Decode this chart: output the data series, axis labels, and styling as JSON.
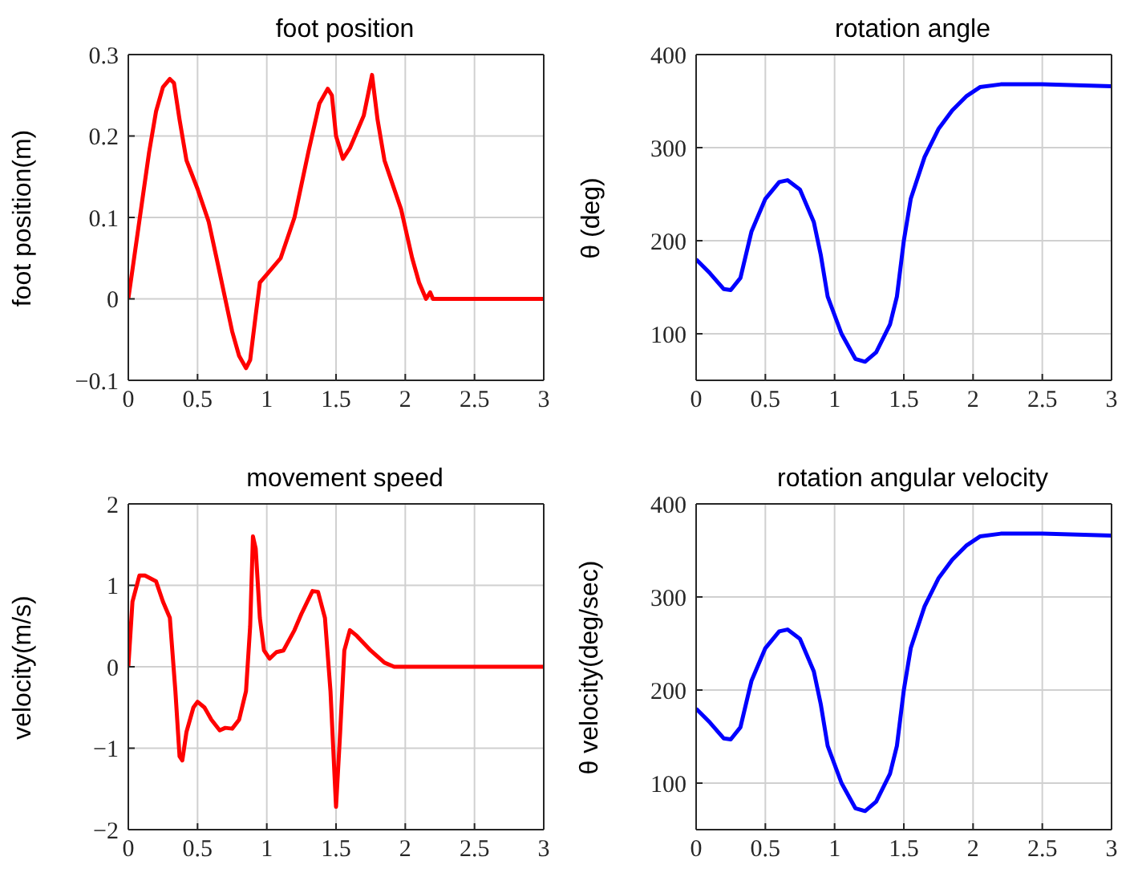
{
  "chart_data": [
    {
      "type": "line",
      "title": "foot position",
      "ylabel": "foot position(m)",
      "xlim": [
        0,
        3
      ],
      "xticks": [
        0,
        0.5,
        1,
        1.5,
        2,
        2.5,
        3
      ],
      "ylim": [
        -0.1,
        0.3
      ],
      "yticks": [
        {
          "value": -0.1,
          "label": "−0.1"
        },
        0,
        0.1,
        0.2,
        0.3
      ],
      "grid": true,
      "x": [
        0,
        0.05,
        0.1,
        0.15,
        0.2,
        0.25,
        0.3,
        0.33,
        0.37,
        0.42,
        0.5,
        0.58,
        0.65,
        0.7,
        0.75,
        0.8,
        0.85,
        0.88,
        0.92,
        0.95,
        1.0,
        1.1,
        1.2,
        1.3,
        1.38,
        1.44,
        1.47,
        1.5,
        1.55,
        1.6,
        1.65,
        1.7,
        1.76,
        1.8,
        1.85,
        1.9,
        1.97,
        2.05,
        2.1,
        2.15,
        2.18,
        2.2,
        3
      ],
      "series": [
        {
          "color": "#ff0000",
          "values": [
            0,
            0.06,
            0.12,
            0.18,
            0.23,
            0.26,
            0.27,
            0.265,
            0.22,
            0.17,
            0.135,
            0.095,
            0.04,
            0.0,
            -0.04,
            -0.07,
            -0.085,
            -0.075,
            -0.02,
            0.02,
            0.03,
            0.05,
            0.1,
            0.18,
            0.24,
            0.258,
            0.25,
            0.2,
            0.172,
            0.185,
            0.205,
            0.225,
            0.275,
            0.22,
            0.17,
            0.145,
            0.11,
            0.05,
            0.02,
            0.0,
            0.008,
            0,
            0
          ]
        }
      ]
    },
    {
      "type": "line",
      "title": "rotation angle",
      "ylabel": "θ (deg)",
      "xlim": [
        0,
        3
      ],
      "xticks": [
        0,
        0.5,
        1,
        1.5,
        2,
        2.5,
        3
      ],
      "ylim": [
        50,
        400
      ],
      "yticks": [
        100,
        200,
        300,
        400
      ],
      "grid": true,
      "x": [
        0,
        0.1,
        0.2,
        0.25,
        0.32,
        0.4,
        0.5,
        0.6,
        0.66,
        0.75,
        0.85,
        0.9,
        0.95,
        1.05,
        1.15,
        1.22,
        1.3,
        1.4,
        1.45,
        1.5,
        1.55,
        1.65,
        1.75,
        1.85,
        1.95,
        2.05,
        2.2,
        2.5,
        3
      ],
      "series": [
        {
          "color": "#0000ff",
          "values": [
            180,
            165,
            148,
            147,
            160,
            210,
            245,
            263,
            265,
            255,
            220,
            185,
            140,
            100,
            73,
            70,
            80,
            110,
            140,
            200,
            245,
            290,
            320,
            340,
            355,
            365,
            368,
            368,
            366
          ]
        }
      ]
    },
    {
      "type": "line",
      "title": "movement speed",
      "ylabel": "velocity(m/s)",
      "xlim": [
        0,
        3
      ],
      "xticks": [
        0,
        0.5,
        1,
        1.5,
        2,
        2.5,
        3
      ],
      "ylim": [
        -2,
        2
      ],
      "yticks": [
        {
          "value": -2,
          "label": "−2"
        },
        {
          "value": -1,
          "label": "−1"
        },
        0,
        1,
        2
      ],
      "grid": true,
      "x": [
        0,
        0.03,
        0.08,
        0.12,
        0.2,
        0.25,
        0.3,
        0.34,
        0.37,
        0.39,
        0.42,
        0.47,
        0.5,
        0.55,
        0.6,
        0.66,
        0.7,
        0.75,
        0.8,
        0.85,
        0.88,
        0.9,
        0.92,
        0.95,
        0.98,
        1.02,
        1.07,
        1.12,
        1.2,
        1.25,
        1.33,
        1.37,
        1.42,
        1.46,
        1.5,
        1.53,
        1.56,
        1.6,
        1.65,
        1.75,
        1.85,
        1.92,
        3
      ],
      "series": [
        {
          "color": "#ff0000",
          "values": [
            0,
            0.8,
            1.12,
            1.12,
            1.05,
            0.8,
            0.6,
            -0.3,
            -1.1,
            -1.15,
            -0.8,
            -0.5,
            -0.43,
            -0.5,
            -0.65,
            -0.78,
            -0.75,
            -0.76,
            -0.65,
            -0.3,
            0.5,
            1.6,
            1.45,
            0.6,
            0.2,
            0.1,
            0.18,
            0.2,
            0.45,
            0.65,
            0.93,
            0.92,
            0.6,
            -0.3,
            -1.72,
            -0.8,
            0.2,
            0.45,
            0.38,
            0.2,
            0.05,
            0,
            0
          ]
        }
      ]
    },
    {
      "type": "line",
      "title": "rotation angular velocity",
      "ylabel": "θ velocity(deg/sec)",
      "xlim": [
        0,
        3
      ],
      "xticks": [
        0,
        0.5,
        1,
        1.5,
        2,
        2.5,
        3
      ],
      "ylim": [
        50,
        400
      ],
      "yticks": [
        100,
        200,
        300,
        400
      ],
      "grid": true,
      "x": [
        0,
        0.1,
        0.2,
        0.25,
        0.32,
        0.4,
        0.5,
        0.6,
        0.66,
        0.75,
        0.85,
        0.9,
        0.95,
        1.05,
        1.15,
        1.22,
        1.3,
        1.4,
        1.45,
        1.5,
        1.55,
        1.65,
        1.75,
        1.85,
        1.95,
        2.05,
        2.2,
        2.5,
        3
      ],
      "series": [
        {
          "color": "#0000ff",
          "values": [
            180,
            165,
            148,
            147,
            160,
            210,
            245,
            263,
            265,
            255,
            220,
            185,
            140,
            100,
            73,
            70,
            80,
            110,
            140,
            200,
            245,
            290,
            320,
            340,
            355,
            365,
            368,
            368,
            366
          ]
        }
      ]
    }
  ]
}
